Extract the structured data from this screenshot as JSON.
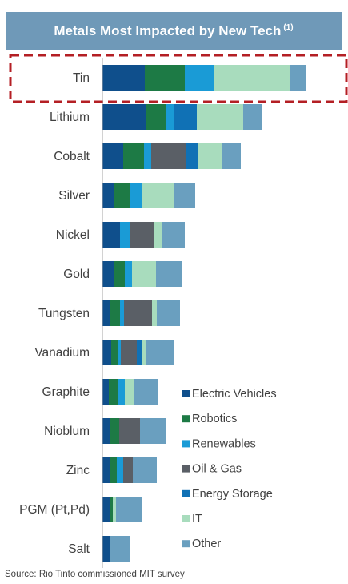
{
  "header": {
    "title": "Metals Most Impacted by New Tech",
    "footnote_mark": "(1)"
  },
  "colors": {
    "Electric Vehicles": "#0f4f8c",
    "Robotics": "#1d7a45",
    "Renewables": "#1a9bd6",
    "Oil & Gas": "#5a5f66",
    "Energy Storage": "#1071b5",
    "IT": "#a8dcbd",
    "Other": "#6a9fbf",
    "highlight_border": "#b41f24",
    "axis_line": "#a6a6a6"
  },
  "highlight_category": "Tin",
  "source": "Source: Rio Tinto commissioned MIT survey",
  "chart_data": {
    "type": "bar",
    "orientation": "horizontal",
    "stacked": true,
    "xlim": [
      0,
      260
    ],
    "categories": [
      "Tin",
      "Lithium",
      "Cobalt",
      "Silver",
      "Nickel",
      "Gold",
      "Tungsten",
      "Vanadium",
      "Graphite",
      "Nioblum",
      "Zinc",
      "PGM (Pt,Pd)",
      "Salt"
    ],
    "series": [
      {
        "name": "Electric Vehicles",
        "values": [
          53,
          54,
          26,
          14,
          22,
          15,
          9,
          11,
          8,
          9,
          10,
          9,
          10
        ]
      },
      {
        "name": "Robotics",
        "values": [
          50,
          26,
          26,
          20,
          0,
          13,
          13,
          8,
          11,
          12,
          8,
          4,
          0
        ]
      },
      {
        "name": "Renewables",
        "values": [
          36,
          10,
          9,
          15,
          12,
          9,
          5,
          4,
          9,
          0,
          8,
          0,
          0
        ]
      },
      {
        "name": "Oil & Gas",
        "values": [
          0,
          0,
          43,
          0,
          30,
          0,
          35,
          20,
          0,
          26,
          12,
          0,
          0
        ]
      },
      {
        "name": "Energy Storage",
        "values": [
          0,
          28,
          16,
          0,
          0,
          0,
          0,
          6,
          0,
          0,
          0,
          0,
          0
        ]
      },
      {
        "name": "IT",
        "values": [
          96,
          58,
          29,
          41,
          10,
          30,
          6,
          6,
          11,
          0,
          0,
          4,
          0
        ]
      },
      {
        "name": "Other",
        "values": [
          20,
          24,
          24,
          26,
          29,
          32,
          29,
          34,
          31,
          32,
          30,
          32,
          25
        ]
      }
    ],
    "legend": {
      "position": "bottom-right",
      "entries": [
        "Electric Vehicles",
        "Robotics",
        "Renewables",
        "Oil & Gas",
        "Energy Storage",
        "IT",
        "Other"
      ]
    }
  }
}
